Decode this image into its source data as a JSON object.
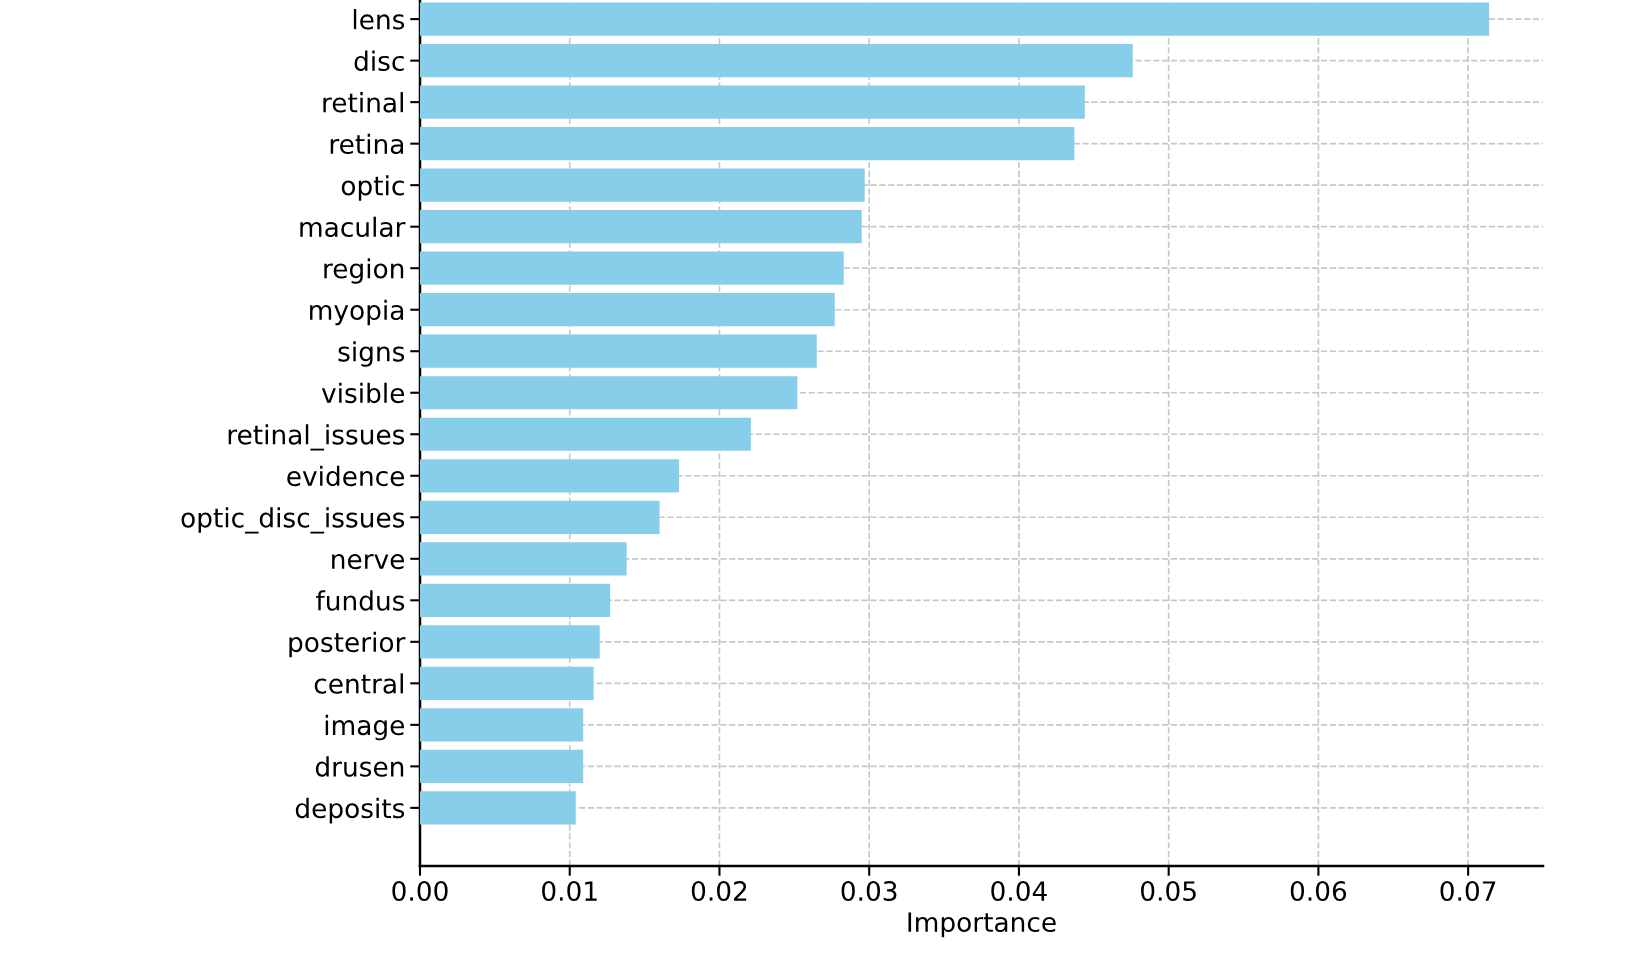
{
  "chart_data": {
    "type": "bar",
    "orientation": "horizontal",
    "xlabel": "Importance",
    "categories": [
      "lens",
      "disc",
      "retinal",
      "retina",
      "optic",
      "macular",
      "region",
      "myopia",
      "signs",
      "visible",
      "retinal_issues",
      "evidence",
      "optic_disc_issues",
      "nerve",
      "fundus",
      "posterior",
      "central",
      "image",
      "drusen",
      "deposits"
    ],
    "values": [
      0.0714,
      0.0476,
      0.0444,
      0.0437,
      0.0297,
      0.0295,
      0.0283,
      0.0277,
      0.0265,
      0.0252,
      0.0221,
      0.0173,
      0.016,
      0.0138,
      0.0127,
      0.012,
      0.0116,
      0.0109,
      0.0109,
      0.0104
    ],
    "color": "#87ceeb",
    "xlim": [
      0,
      0.075
    ],
    "xticks": [
      {
        "value": 0,
        "label": "0.00"
      },
      {
        "value": 0.01,
        "label": "0.01"
      },
      {
        "value": 0.02,
        "label": "0.02"
      },
      {
        "value": 0.03,
        "label": "0.03"
      },
      {
        "value": 0.04,
        "label": "0.04"
      },
      {
        "value": 0.05,
        "label": "0.05"
      },
      {
        "value": 0.06,
        "label": "0.06"
      },
      {
        "value": 0.07,
        "label": "0.07"
      }
    ],
    "grid": true
  }
}
